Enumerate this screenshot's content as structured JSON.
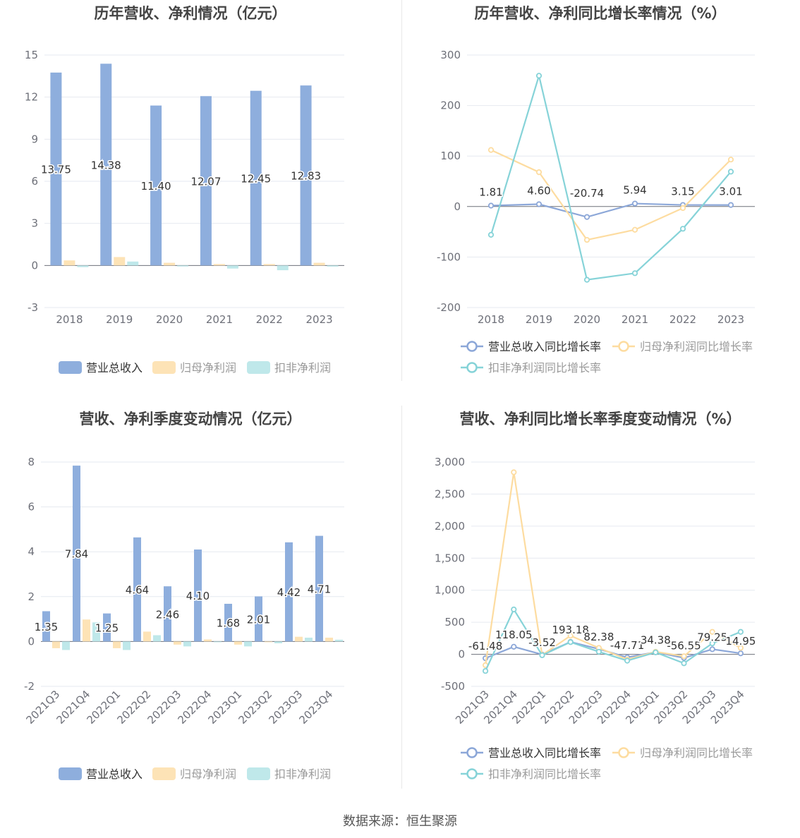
{
  "source_text": "数据来源：恒生聚源",
  "colors": {
    "revenue": "#8eaedd",
    "net_profit": "#fde3b6",
    "deducted_profit": "#bfe8ea",
    "revenue_line": "#8ca7d8",
    "net_profit_line": "#fddca0",
    "deducted_line": "#86d3d8",
    "grid": "#e6e9f0",
    "axis_text": "#6e7079",
    "title": "#444444"
  },
  "chart_data": [
    {
      "type": "bar",
      "title": "历年营收、净利情况（亿元）",
      "categories": [
        "2018",
        "2019",
        "2020",
        "2021",
        "2022",
        "2023"
      ],
      "ylim": [
        -3,
        15
      ],
      "yticks": [
        -3,
        0,
        3,
        6,
        9,
        12,
        15
      ],
      "grid": true,
      "legend_position": "bottom",
      "label_series": 0,
      "series": [
        {
          "name": "营业总收入",
          "values": [
            13.75,
            14.38,
            11.4,
            12.07,
            12.45,
            12.83
          ],
          "labels": [
            "13.75",
            "14.38",
            "11.40",
            "12.07",
            "12.45",
            "12.83"
          ]
        },
        {
          "name": "归母净利润",
          "values": [
            0.36,
            0.6,
            0.19,
            0.1,
            0.1,
            0.19
          ]
        },
        {
          "name": "扣非净利润",
          "values": [
            -0.12,
            0.28,
            -0.07,
            -0.22,
            -0.34,
            -0.08
          ]
        }
      ]
    },
    {
      "type": "line",
      "title": "历年营收、净利同比增长率情况（%）",
      "categories": [
        "2018",
        "2019",
        "2020",
        "2021",
        "2022",
        "2023"
      ],
      "ylim": [
        -200,
        300
      ],
      "yticks": [
        -200,
        -100,
        0,
        100,
        200,
        300
      ],
      "grid": true,
      "legend_position": "bottom",
      "label_series": 0,
      "series": [
        {
          "name": "营业总收入同比增长率",
          "values": [
            1.81,
            4.6,
            -20.74,
            5.94,
            3.15,
            3.01
          ],
          "labels": [
            "1.81",
            "4.60",
            "-20.74",
            "5.94",
            "3.15",
            "3.01"
          ]
        },
        {
          "name": "归母净利润同比增长率",
          "values": [
            112,
            68,
            -66,
            -46,
            -3,
            93
          ]
        },
        {
          "name": "扣非净利润同比增长率",
          "values": [
            -56,
            259,
            -145,
            -132,
            -44,
            69
          ]
        }
      ]
    },
    {
      "type": "bar",
      "title": "营收、净利季度变动情况（亿元）",
      "categories": [
        "2021Q3",
        "2021Q4",
        "2022Q1",
        "2022Q2",
        "2022Q3",
        "2022Q4",
        "2023Q1",
        "2023Q2",
        "2023Q3",
        "2023Q4"
      ],
      "ylim": [
        -2,
        8
      ],
      "yticks": [
        -2,
        0,
        2,
        4,
        6,
        8
      ],
      "grid": true,
      "legend_position": "bottom",
      "label_series": 0,
      "series": [
        {
          "name": "营业总收入",
          "values": [
            1.35,
            7.84,
            1.25,
            4.64,
            2.46,
            4.1,
            1.68,
            2.01,
            4.42,
            4.71
          ],
          "labels": [
            "1.35",
            "7.84",
            "1.25",
            "4.64",
            "2.46",
            "4.10",
            "1.68",
            "2.01",
            "4.42",
            "4.71"
          ]
        },
        {
          "name": "归母净利润",
          "values": [
            -0.3,
            0.98,
            -0.3,
            0.44,
            -0.14,
            0.09,
            -0.14,
            0.0,
            0.21,
            0.17
          ]
        },
        {
          "name": "扣非净利润",
          "values": [
            -0.38,
            0.85,
            -0.38,
            0.28,
            -0.22,
            0.0,
            -0.22,
            -0.08,
            0.17,
            0.08
          ]
        }
      ]
    },
    {
      "type": "line",
      "title": "营收、净利同比增长率季度变动情况（%）",
      "categories": [
        "2021Q3",
        "2021Q4",
        "2022Q1",
        "2022Q2",
        "2022Q3",
        "2022Q4",
        "2023Q1",
        "2023Q2",
        "2023Q3",
        "2023Q4"
      ],
      "ylim": [
        -500,
        3000
      ],
      "yticks": [
        -500,
        0,
        500,
        1000,
        1500,
        2000,
        2500,
        3000
      ],
      "grid": true,
      "legend_position": "bottom",
      "label_series": 0,
      "series": [
        {
          "name": "营业总收入同比增长率",
          "values": [
            -61.48,
            118.05,
            -3.52,
            193.18,
            82.38,
            -47.71,
            34.38,
            -56.55,
            79.25,
            14.95
          ],
          "labels": [
            "-61.48",
            "118.05",
            "-3.52",
            "193.18",
            "82.38",
            "-47.71",
            "34.38",
            "-56.55",
            "79.25",
            "14.95"
          ]
        },
        {
          "name": "归母净利润同比增长率",
          "values": [
            -170,
            2840,
            -10,
            290,
            100,
            -80,
            40,
            -30,
            350,
            100
          ]
        },
        {
          "name": "扣非净利润同比增长率",
          "values": [
            -260,
            700,
            -15,
            190,
            40,
            -100,
            30,
            -140,
            170,
            350
          ]
        }
      ]
    }
  ]
}
